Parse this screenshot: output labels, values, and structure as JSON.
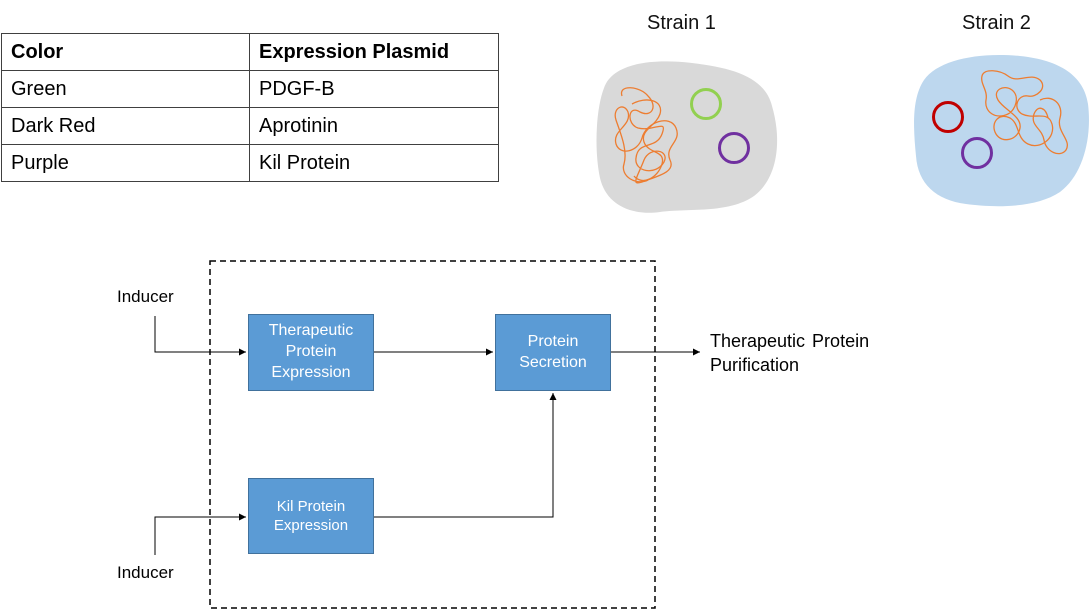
{
  "table": {
    "headers": [
      "Color",
      "Expression Plasmid"
    ],
    "rows": [
      [
        "Green",
        "PDGF-B"
      ],
      [
        "Dark Red",
        "Aprotinin"
      ],
      [
        "Purple",
        "Kil Protein"
      ]
    ]
  },
  "strains": [
    {
      "title": "Strain 1",
      "cell_color": "#d9d9d9",
      "plasmid_colors": [
        "#92d050",
        "#7030a0"
      ]
    },
    {
      "title": "Strain 2",
      "cell_color": "#bdd7ee",
      "plasmid_colors": [
        "#c00000",
        "#7030a0"
      ]
    }
  ],
  "diagram": {
    "inducer_top": "Inducer",
    "inducer_bottom": "Inducer",
    "therapeutic_block": [
      "Therapeutic",
      "Protein",
      "Expression"
    ],
    "secretion_block": [
      "Protein",
      "Secretion"
    ],
    "kil_block": [
      "Kil Protein",
      "Expression"
    ],
    "output": [
      "Therapeutic Protein",
      "Purification"
    ]
  },
  "colors": {
    "block_fill": "#5b9bd5",
    "dna": "#ed7d31"
  }
}
